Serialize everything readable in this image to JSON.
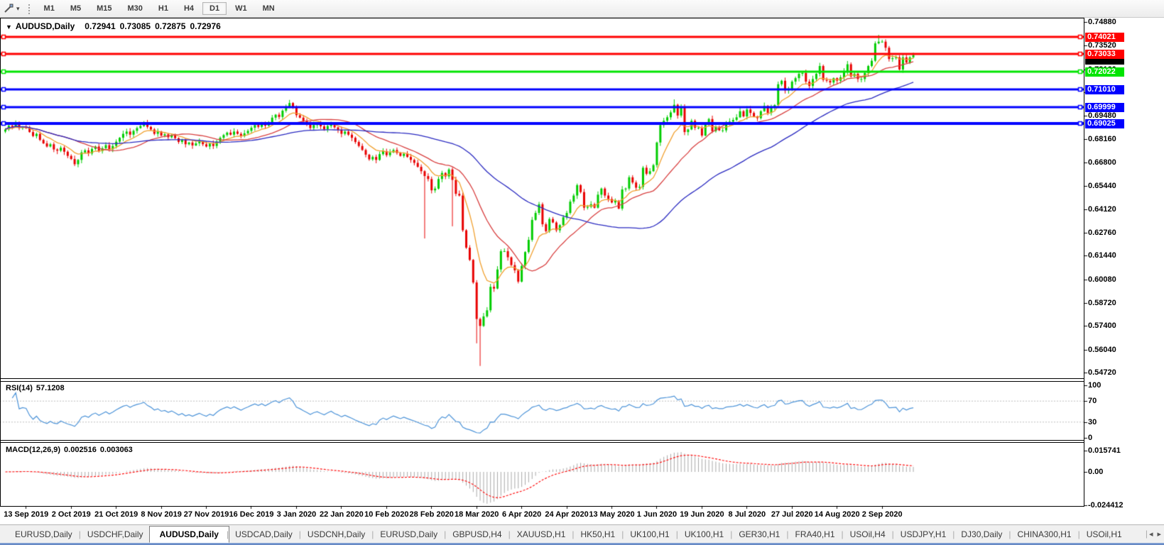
{
  "toolbar": {
    "timeframes": [
      "M1",
      "M5",
      "M15",
      "M30",
      "H1",
      "H4",
      "D1",
      "W1",
      "MN"
    ],
    "active_timeframe": "D1",
    "tool_dropdown_icon": "▾"
  },
  "chart_header": {
    "collapse_icon": "▼",
    "symbol": "AUDUSD,Daily",
    "open": "0.72941",
    "high": "0.73085",
    "low": "0.72875",
    "close": "0.72976"
  },
  "rsi_panel": {
    "label": "RSI(14)",
    "value": "57.1208",
    "level_labels": [
      {
        "text": "100",
        "value": 100
      },
      {
        "text": "70",
        "value": 70
      },
      {
        "text": "30",
        "value": 30
      },
      {
        "text": "0",
        "value": 0
      }
    ]
  },
  "macd_panel": {
    "label": "MACD(12,26,9)",
    "main_value": "0.002516",
    "signal_value": "0.003063",
    "level_labels": [
      {
        "text": "0.015741",
        "value": 0.015741
      },
      {
        "text": "0.00",
        "value": 0
      },
      {
        "text": "-0.024412",
        "value": -0.024412
      }
    ]
  },
  "tabs": {
    "items": [
      "EURUSD,Daily",
      "USDCHF,Daily",
      "AUDUSD,Daily",
      "USDCAD,Daily",
      "USDCNH,Daily",
      "EURUSD,Daily",
      "GBPUSD,H4",
      "XAUUSD,H1",
      "HK50,H1",
      "UK100,H1",
      "UK100,H1",
      "GER30,H1",
      "FRA40,H1",
      "USOil,H4",
      "USDJPY,H1",
      "DJ30,Daily",
      "CHINA300,H1",
      "USOil,H1"
    ],
    "active_index": 2,
    "scroll_left_icon": "◂",
    "scroll_right_icon": "▸"
  },
  "chart_data": {
    "type": "candlestick",
    "title": "AUDUSD,Daily",
    "last_ohlc": {
      "open": 0.72941,
      "high": 0.73085,
      "low": 0.72875,
      "close": 0.72976
    },
    "ylim": [
      0.54394,
      0.75125
    ],
    "y_ticks": [
      0.7488,
      0.7352,
      0.7216,
      0.7084,
      0.6948,
      0.6816,
      0.668,
      0.6544,
      0.6412,
      0.6276,
      0.6144,
      0.6008,
      0.5872,
      0.574,
      0.5604,
      0.5472
    ],
    "x_labels": [
      "13 Sep 2019",
      "2 Oct 2019",
      "21 Oct 2019",
      "8 Nov 2019",
      "27 Nov 2019",
      "16 Dec 2019",
      "3 Jan 2020",
      "22 Jan 2020",
      "10 Feb 2020",
      "28 Feb 2020",
      "18 Mar 2020",
      "6 Apr 2020",
      "24 Apr 2020",
      "13 May 2020",
      "1 Jun 2020",
      "19 Jun 2020",
      "8 Jul 2020",
      "27 Jul 2020",
      "14 Aug 2020",
      "2 Sep 2020"
    ],
    "x_label_first_index": 6,
    "x_label_step": 13,
    "up_color": "#00CC00",
    "down_color": "#E80000",
    "closes": [
      0.687,
      0.6892,
      0.6885,
      0.6905,
      0.6878,
      0.6882,
      0.688,
      0.6855,
      0.6832,
      0.6845,
      0.681,
      0.679,
      0.6772,
      0.6785,
      0.6755,
      0.6748,
      0.6765,
      0.6742,
      0.6718,
      0.67,
      0.667,
      0.6695,
      0.6738,
      0.675,
      0.6732,
      0.6758,
      0.6772,
      0.6745,
      0.6762,
      0.678,
      0.6756,
      0.6775,
      0.68,
      0.6822,
      0.6845,
      0.6858,
      0.684,
      0.6862,
      0.6878,
      0.689,
      0.691,
      0.6885,
      0.687,
      0.6845,
      0.6858,
      0.6835,
      0.6842,
      0.6825,
      0.6838,
      0.682,
      0.6798,
      0.681,
      0.6785,
      0.6795,
      0.6778,
      0.679,
      0.6802,
      0.6785,
      0.6772,
      0.6788,
      0.6775,
      0.68,
      0.6822,
      0.6838,
      0.6852,
      0.684,
      0.6858,
      0.6845,
      0.6832,
      0.6848,
      0.6862,
      0.688,
      0.6895,
      0.6885,
      0.6905,
      0.6892,
      0.6912,
      0.6938,
      0.6955,
      0.6942,
      0.6978,
      0.7,
      0.7022,
      0.6998,
      0.6952,
      0.6938,
      0.6918,
      0.69,
      0.6878,
      0.6895,
      0.6905,
      0.6888,
      0.6872,
      0.689,
      0.6905,
      0.6882,
      0.6868,
      0.6845,
      0.6858,
      0.684,
      0.6822,
      0.6798,
      0.6775,
      0.6752,
      0.6725,
      0.6698,
      0.6712,
      0.6695,
      0.6728,
      0.6745,
      0.6722,
      0.6738,
      0.6752,
      0.6735,
      0.6718,
      0.673,
      0.6712,
      0.6695,
      0.6678,
      0.6655,
      0.663,
      0.6602,
      0.6585,
      0.652,
      0.653,
      0.6585,
      0.662,
      0.66,
      0.664,
      0.658,
      0.65,
      0.649,
      0.629,
      0.619,
      0.612,
      0.599,
      0.578,
      0.574,
      0.5795,
      0.583,
      0.5965,
      0.5955,
      0.6065,
      0.617,
      0.617,
      0.6135,
      0.609,
      0.606,
      0.5995,
      0.6085,
      0.6165,
      0.6235,
      0.635,
      0.639,
      0.644,
      0.6325,
      0.6285,
      0.6355,
      0.6335,
      0.629,
      0.632,
      0.6365,
      0.639,
      0.6455,
      0.649,
      0.655,
      0.651,
      0.642,
      0.6425,
      0.644,
      0.642,
      0.6495,
      0.653,
      0.649,
      0.647,
      0.645,
      0.646,
      0.6415,
      0.6525,
      0.653,
      0.6595,
      0.6565,
      0.6535,
      0.654,
      0.665,
      0.6615,
      0.663,
      0.6665,
      0.6795,
      0.6895,
      0.692,
      0.694,
      0.6968,
      0.7012,
      0.695,
      0.7,
      0.6855,
      0.687,
      0.692,
      0.688,
      0.688,
      0.6835,
      0.6905,
      0.693,
      0.686,
      0.6885,
      0.6865,
      0.6865,
      0.6905,
      0.6915,
      0.6925,
      0.694,
      0.6975,
      0.6945,
      0.6985,
      0.6965,
      0.6945,
      0.6935,
      0.6975,
      0.7005,
      0.6965,
      0.6995,
      0.701,
      0.713,
      0.715,
      0.7095,
      0.7105,
      0.7145,
      0.7165,
      0.719,
      0.7195,
      0.7145,
      0.712,
      0.716,
      0.719,
      0.7235,
      0.7155,
      0.715,
      0.714,
      0.7165,
      0.715,
      0.717,
      0.7205,
      0.7245,
      0.7175,
      0.719,
      0.716,
      0.716,
      0.7195,
      0.7235,
      0.7265,
      0.7365,
      0.7375,
      0.7375,
      0.734,
      0.7275,
      0.728,
      0.7285,
      0.7215,
      0.7285,
      0.7255,
      0.7285,
      0.7298
    ],
    "wick_overrides": {
      "82": {
        "high": 0.704
      },
      "121": {
        "low": 0.6243
      },
      "129": {
        "low": 0.6313
      },
      "136": {
        "low": 0.564
      },
      "137": {
        "low": 0.551
      },
      "193": {
        "high": 0.7043
      },
      "252": {
        "high": 0.7414
      }
    },
    "hlines": [
      {
        "price": 0.74021,
        "label": "0.74021",
        "color": "#FF0000",
        "width": 3
      },
      {
        "price": 0.73033,
        "label": "0.73033",
        "color": "#FF0000",
        "width": 3
      },
      {
        "price": 0.72022,
        "label": "0.72022",
        "color": "#00E400",
        "width": 3
      },
      {
        "price": 0.7101,
        "label": "0.71010",
        "color": "#0000FF",
        "width": 3
      },
      {
        "price": 0.69999,
        "label": "0.69999",
        "color": "#0000FF",
        "width": 3
      },
      {
        "price": 0.69025,
        "label": "0.69025",
        "color": "#0000FF",
        "width": 4
      }
    ],
    "current_bid": {
      "price": 0.72976,
      "color": "#000000"
    },
    "ma_lines": [
      {
        "type": "ema",
        "period": 9,
        "color": "#F0A030"
      },
      {
        "type": "sma",
        "period": 21,
        "color": "#D84040"
      },
      {
        "type": "sma",
        "period": 55,
        "color": "#2A2AC0"
      }
    ],
    "rsi": {
      "period": 14,
      "current": 57.1208,
      "levels": [
        70,
        30
      ],
      "ylim": [
        0,
        100
      ],
      "line_color": "#4C93D8",
      "level_color": "#BDBDBD"
    },
    "macd": {
      "fast": 12,
      "slow": 26,
      "signal": 9,
      "current_main": 0.002516,
      "current_signal": 0.003063,
      "ylim": [
        -0.0252,
        0.0215
      ],
      "hist_color": "#A8A8A8",
      "signal_color": "#FF1010"
    }
  }
}
